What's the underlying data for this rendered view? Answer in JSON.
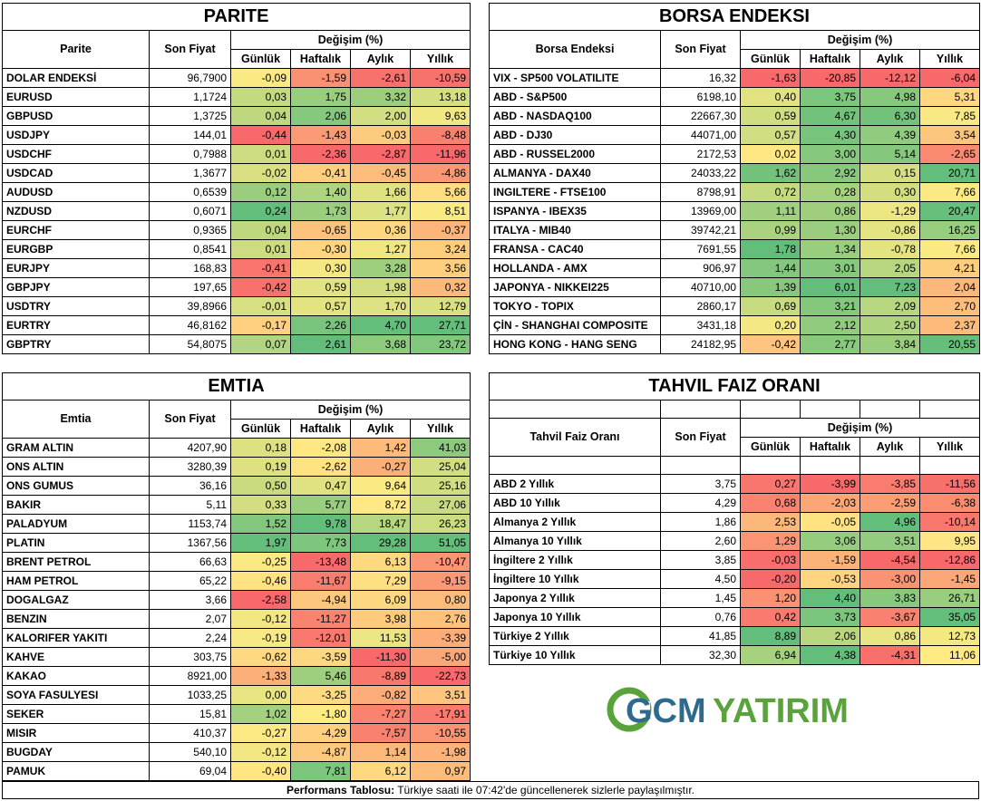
{
  "footer": {
    "label": "Performans Tablosu:",
    "text": " Türkiye saati ile 07:42'de güncellenerek sizlerle paylaşılmıştır."
  },
  "logo": {
    "part1": "GCM",
    "part2": "YATIRIM",
    "colors": {
      "gcm": "#2d6a8e",
      "yatirim": "#5aa33c"
    }
  },
  "scale_colors": {
    "red": "#f8696b",
    "yellow": "#ffeb84",
    "green": "#63be7b"
  },
  "panels": {
    "parite": {
      "title": "PARITE",
      "col_name": "Parite",
      "col_price": "Son Fiyat",
      "col_change": "Değişim (%)",
      "sub": [
        "Günlük",
        "Haftalık",
        "Aylık",
        "Yıllık"
      ],
      "rows": [
        {
          "name": "DOLAR ENDEKSİ",
          "price": "96,7900",
          "vals": [
            "-0,09",
            "-1,59",
            "-2,61",
            "-10,59"
          ]
        },
        {
          "name": "EURUSD",
          "price": "1,1724",
          "vals": [
            "0,03",
            "1,75",
            "3,32",
            "13,18"
          ]
        },
        {
          "name": "GBPUSD",
          "price": "1,3725",
          "vals": [
            "0,04",
            "2,06",
            "2,00",
            "9,63"
          ]
        },
        {
          "name": "USDJPY",
          "price": "144,01",
          "vals": [
            "-0,44",
            "-1,43",
            "-0,03",
            "-8,48"
          ]
        },
        {
          "name": "USDCHF",
          "price": "0,7988",
          "vals": [
            "0,01",
            "-2,36",
            "-2,87",
            "-11,96"
          ]
        },
        {
          "name": "USDCAD",
          "price": "1,3677",
          "vals": [
            "-0,02",
            "-0,41",
            "-0,45",
            "-4,86"
          ]
        },
        {
          "name": "AUDUSD",
          "price": "0,6539",
          "vals": [
            "0,12",
            "1,40",
            "1,66",
            "5,66"
          ]
        },
        {
          "name": "NZDUSD",
          "price": "0,6071",
          "vals": [
            "0,24",
            "1,73",
            "1,77",
            "8,51"
          ]
        },
        {
          "name": "EURCHF",
          "price": "0,9365",
          "vals": [
            "0,04",
            "-0,65",
            "0,36",
            "-0,37"
          ]
        },
        {
          "name": "EURGBP",
          "price": "0,8541",
          "vals": [
            "0,01",
            "-0,30",
            "1,27",
            "3,24"
          ]
        },
        {
          "name": "EURJPY",
          "price": "168,83",
          "vals": [
            "-0,41",
            "0,30",
            "3,28",
            "3,56"
          ]
        },
        {
          "name": "GBPJPY",
          "price": "197,65",
          "vals": [
            "-0,42",
            "0,59",
            "1,98",
            "0,32"
          ]
        },
        {
          "name": "USDTRY",
          "price": "39,8966",
          "vals": [
            "-0,01",
            "0,57",
            "1,70",
            "12,79"
          ]
        },
        {
          "name": "EURTRY",
          "price": "46,8162",
          "vals": [
            "-0,17",
            "2,26",
            "4,70",
            "27,71"
          ]
        },
        {
          "name": "GBPTRY",
          "price": "54,8075",
          "vals": [
            "0,07",
            "2,61",
            "3,68",
            "23,72"
          ]
        }
      ]
    },
    "borsa": {
      "title": "BORSA ENDEKSI",
      "col_name": "Borsa Endeksi",
      "col_price": "Son Fiyat",
      "col_change": "Değişim (%)",
      "sub": [
        "Günlük",
        "Haftalık",
        "Aylık",
        "Yıllık"
      ],
      "rows": [
        {
          "name": "VIX  -  SP500 VOLATILITE",
          "price": "16,32",
          "vals": [
            "-1,63",
            "-20,85",
            "-12,12",
            "-6,04"
          ]
        },
        {
          "name": "ABD  -  S&P500",
          "price": "6198,10",
          "vals": [
            "0,40",
            "3,75",
            "4,98",
            "5,31"
          ]
        },
        {
          "name": "ABD  -  NASDAQ100",
          "price": "22667,30",
          "vals": [
            "0,59",
            "4,67",
            "6,30",
            "7,85"
          ]
        },
        {
          "name": "ABD  -  DJ30",
          "price": "44071,00",
          "vals": [
            "0,57",
            "4,30",
            "4,39",
            "3,54"
          ]
        },
        {
          "name": "ABD  -  RUSSEL2000",
          "price": "2172,53",
          "vals": [
            "0,02",
            "3,00",
            "5,14",
            "-2,65"
          ]
        },
        {
          "name": "ALMANYA  -  DAX40",
          "price": "24033,22",
          "vals": [
            "1,62",
            "2,92",
            "0,15",
            "20,71"
          ]
        },
        {
          "name": "INGILTERE  -  FTSE100",
          "price": "8798,91",
          "vals": [
            "0,72",
            "0,28",
            "0,30",
            "7,66"
          ]
        },
        {
          "name": "ISPANYA  -  IBEX35",
          "price": "13969,00",
          "vals": [
            "1,11",
            "0,86",
            "-1,29",
            "20,47"
          ]
        },
        {
          "name": "ITALYA  -  MIB40",
          "price": "39742,21",
          "vals": [
            "0,99",
            "1,30",
            "-0,86",
            "16,25"
          ]
        },
        {
          "name": "FRANSA  -  CAC40",
          "price": "7691,55",
          "vals": [
            "1,78",
            "1,34",
            "-0,78",
            "7,66"
          ]
        },
        {
          "name": "HOLLANDA  -  AMX",
          "price": "906,97",
          "vals": [
            "1,44",
            "3,01",
            "2,05",
            "4,21"
          ]
        },
        {
          "name": "JAPONYA  -  NIKKEI225",
          "price": "40710,00",
          "vals": [
            "1,39",
            "6,01",
            "7,23",
            "2,04"
          ]
        },
        {
          "name": "TOKYO  -  TOPIX",
          "price": "2860,17",
          "vals": [
            "0,69",
            "3,21",
            "2,09",
            "2,70"
          ]
        },
        {
          "name": "ÇİN  -  SHANGHAI COMPOSITE",
          "price": "3431,18",
          "vals": [
            "0,20",
            "2,12",
            "2,50",
            "2,37"
          ]
        },
        {
          "name": "HONG KONG  -  HANG SENG",
          "price": "24182,95",
          "vals": [
            "-0,42",
            "2,77",
            "3,84",
            "20,55"
          ]
        }
      ]
    },
    "emtia": {
      "title": "EMTIA",
      "col_name": "Emtia",
      "col_price": "Son Fiyat",
      "col_change": "Değişim (%)",
      "sub": [
        "Günlük",
        "Haftalık",
        "Aylık",
        "Yıllık"
      ],
      "rows": [
        {
          "name": "GRAM ALTIN",
          "price": "4207,90",
          "vals": [
            "0,18",
            "-2,08",
            "1,42",
            "41,03"
          ]
        },
        {
          "name": "ONS ALTIN",
          "price": "3280,39",
          "vals": [
            "0,19",
            "-2,62",
            "-0,27",
            "25,04"
          ]
        },
        {
          "name": "ONS GUMUS",
          "price": "36,16",
          "vals": [
            "0,50",
            "0,47",
            "9,64",
            "25,16"
          ]
        },
        {
          "name": "BAKIR",
          "price": "5,11",
          "vals": [
            "0,33",
            "5,77",
            "8,72",
            "27,06"
          ]
        },
        {
          "name": "PALADYUM",
          "price": "1153,74",
          "vals": [
            "1,52",
            "9,78",
            "18,47",
            "26,23"
          ]
        },
        {
          "name": "PLATIN",
          "price": "1367,56",
          "vals": [
            "1,97",
            "7,73",
            "29,28",
            "51,05"
          ]
        },
        {
          "name": "BRENT PETROL",
          "price": "66,63",
          "vals": [
            "-0,25",
            "-13,48",
            "6,13",
            "-10,47"
          ]
        },
        {
          "name": "HAM PETROL",
          "price": "65,22",
          "vals": [
            "-0,46",
            "-11,67",
            "7,29",
            "-9,15"
          ]
        },
        {
          "name": "DOGALGAZ",
          "price": "3,66",
          "vals": [
            "-2,58",
            "-4,94",
            "6,09",
            "0,80"
          ]
        },
        {
          "name": "BENZIN",
          "price": "2,07",
          "vals": [
            "-0,12",
            "-11,27",
            "3,98",
            "2,76"
          ]
        },
        {
          "name": "KALORIFER YAKITI",
          "price": "2,24",
          "vals": [
            "-0,19",
            "-12,01",
            "11,53",
            "-3,39"
          ]
        },
        {
          "name": "KAHVE",
          "price": "303,75",
          "vals": [
            "-0,62",
            "-3,59",
            "-11,30",
            "-5,00"
          ]
        },
        {
          "name": "KAKAO",
          "price": "8921,00",
          "vals": [
            "-1,33",
            "5,46",
            "-8,89",
            "-22,73"
          ]
        },
        {
          "name": "SOYA FASULYESI",
          "price": "1033,25",
          "vals": [
            "0,00",
            "-3,25",
            "-0,82",
            "3,51"
          ]
        },
        {
          "name": "SEKER",
          "price": "15,81",
          "vals": [
            "1,02",
            "-1,80",
            "-7,27",
            "-17,91"
          ]
        },
        {
          "name": "MISIR",
          "price": "410,37",
          "vals": [
            "-0,27",
            "-4,29",
            "-7,57",
            "-10,55"
          ]
        },
        {
          "name": "BUGDAY",
          "price": "540,10",
          "vals": [
            "-0,12",
            "-4,87",
            "1,14",
            "-1,98"
          ]
        },
        {
          "name": "PAMUK",
          "price": "69,04",
          "vals": [
            "-0,40",
            "7,81",
            "6,12",
            "0,97"
          ]
        }
      ]
    },
    "tahvil": {
      "title": "TAHVIL FAIZ ORANI",
      "col_name": "Tahvil Faiz Oranı",
      "col_price": "Son Fiyat",
      "col_change": "Değişim (%)",
      "sub": [
        "Günlük",
        "Haftalık",
        "Aylık",
        "Yıllık"
      ],
      "rows": [
        {
          "name": "ABD 2 Yıllık",
          "price": "3,75",
          "vals": [
            "0,27",
            "-3,99",
            "-3,85",
            "-11,56"
          ]
        },
        {
          "name": "ABD 10 Yıllık",
          "price": "4,29",
          "vals": [
            "0,68",
            "-2,03",
            "-2,59",
            "-6,38"
          ]
        },
        {
          "name": "Almanya 2 Yıllık",
          "price": "1,86",
          "vals": [
            "2,53",
            "-0,05",
            "4,96",
            "-10,14"
          ]
        },
        {
          "name": "Almanya 10 Yıllık",
          "price": "2,60",
          "vals": [
            "1,29",
            "3,06",
            "3,51",
            "9,95"
          ]
        },
        {
          "name": "İngiltere 2 Yıllık",
          "price": "3,85",
          "vals": [
            "-0,03",
            "-1,59",
            "-4,54",
            "-12,86"
          ]
        },
        {
          "name": "İngiltere 10 Yıllık",
          "price": "4,50",
          "vals": [
            "-0,20",
            "-0,53",
            "-3,00",
            "-1,45"
          ]
        },
        {
          "name": "Japonya 2 Yıllık",
          "price": "1,45",
          "vals": [
            "1,20",
            "4,40",
            "3,83",
            "26,71"
          ]
        },
        {
          "name": "Japonya 10 Yıllık",
          "price": "0,76",
          "vals": [
            "0,42",
            "3,73",
            "-3,67",
            "35,05"
          ]
        },
        {
          "name": "Türkiye 2 Yıllık",
          "price": "41,85",
          "vals": [
            "8,89",
            "2,06",
            "0,86",
            "12,73"
          ]
        },
        {
          "name": "Türkiye 10 Yıllık",
          "price": "32,30",
          "vals": [
            "6,94",
            "4,38",
            "-4,31",
            "11,06"
          ]
        }
      ]
    }
  }
}
